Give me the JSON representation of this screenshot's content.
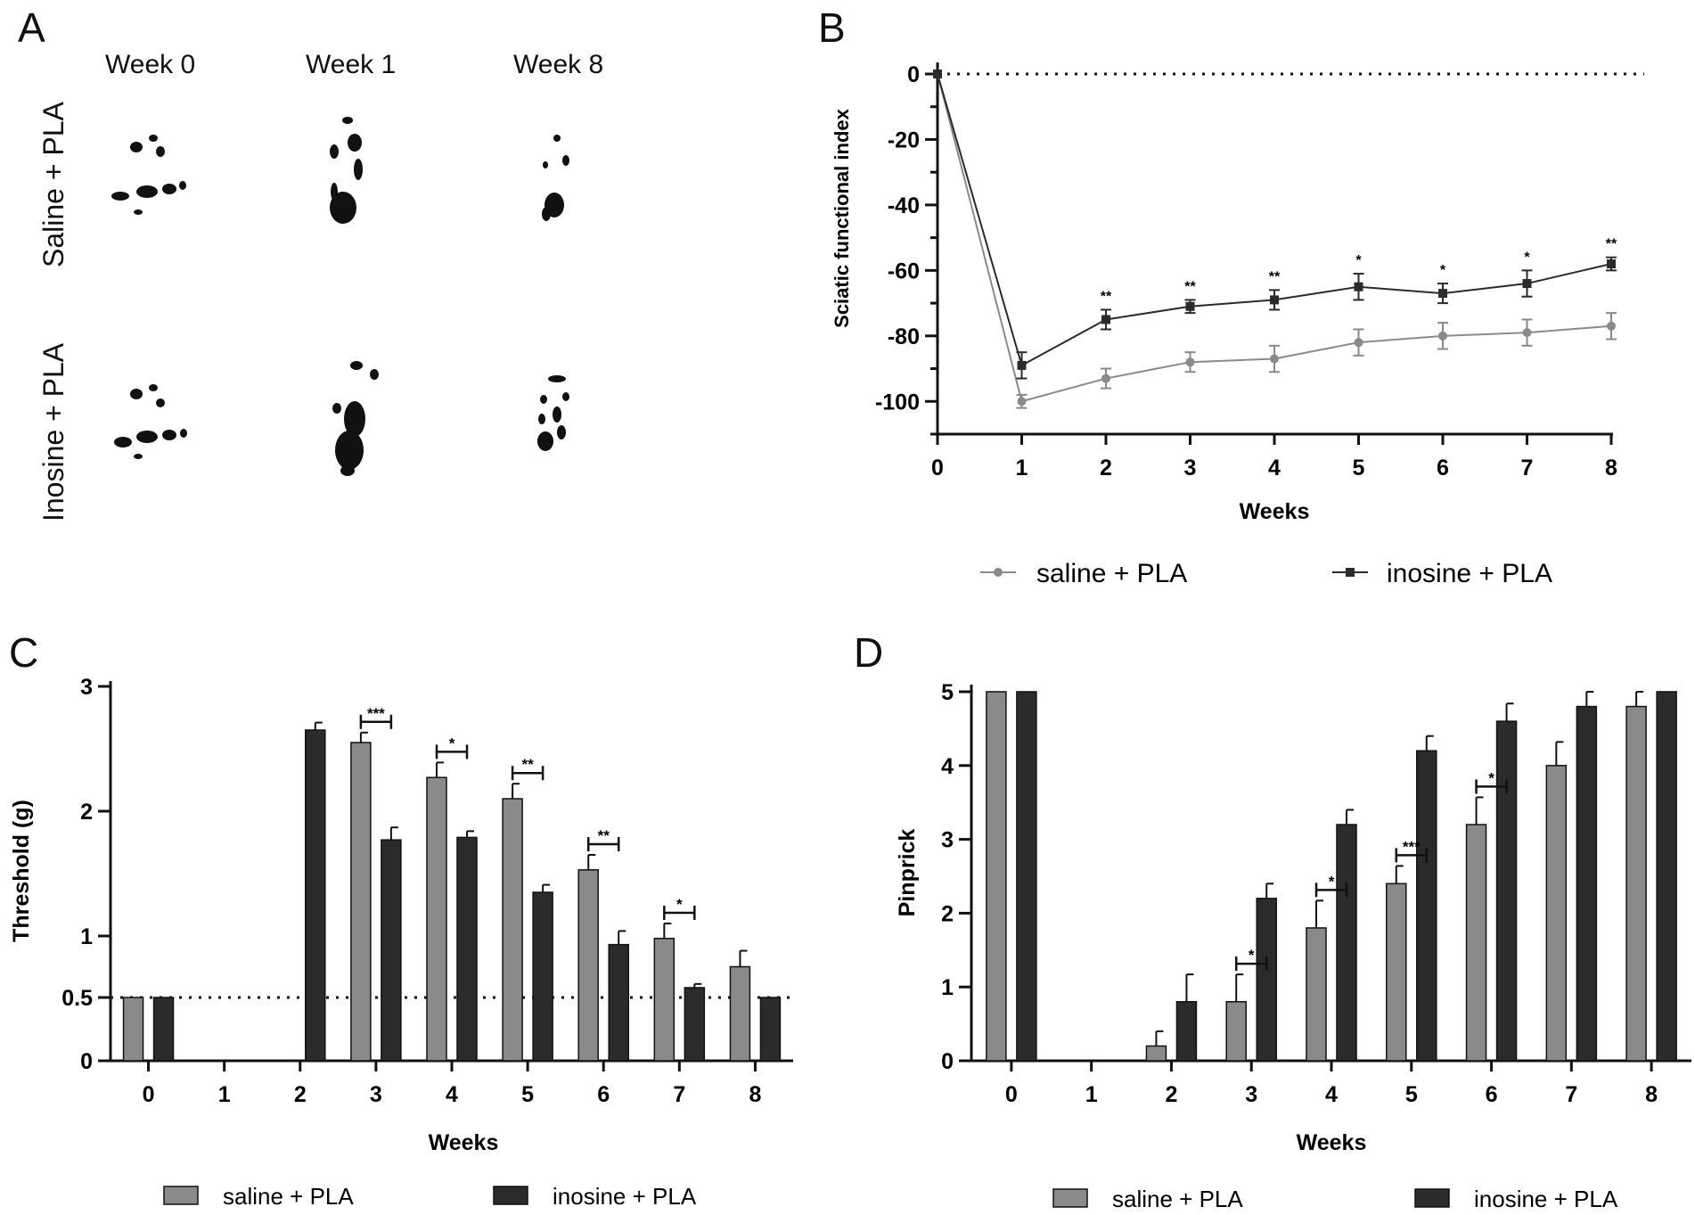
{
  "panels": {
    "a": "A",
    "b": "B",
    "c": "C",
    "d": "D"
  },
  "panel_a": {
    "columns": [
      "Week 0",
      "Week 1",
      "Week 8"
    ],
    "rows": [
      "Saline + PLA",
      "Inosine + PLA"
    ]
  },
  "colors": {
    "saline": "#8a8a8a",
    "inosine": "#2b2b2b",
    "axis": "#111111"
  },
  "chart_data": [
    {
      "id": "B",
      "type": "line",
      "xlabel": "Weeks",
      "ylabel": "Sciatic functional index",
      "x": [
        0,
        1,
        2,
        3,
        4,
        5,
        6,
        7,
        8
      ],
      "xlim": [
        0,
        8
      ],
      "ylim": [
        -110,
        0
      ],
      "yticks": [
        0,
        -20,
        -40,
        -60,
        -80,
        -100
      ],
      "reference_line": 0,
      "series": [
        {
          "name": "saline + PLA",
          "values": [
            0,
            -100,
            -93,
            -88,
            -87,
            -82,
            -80,
            -79,
            -77
          ],
          "errors": [
            0,
            2,
            3,
            3,
            4,
            4,
            4,
            4,
            4
          ]
        },
        {
          "name": "inosine + PLA",
          "values": [
            0,
            -89,
            -75,
            -71,
            -69,
            -65,
            -67,
            -64,
            -58
          ],
          "errors": [
            0,
            4,
            3,
            2,
            3,
            4,
            3,
            4,
            2
          ]
        }
      ],
      "significance": [
        "",
        "",
        "**",
        "**",
        "**",
        "*",
        "*",
        "*",
        "**"
      ]
    },
    {
      "id": "C",
      "type": "bar",
      "xlabel": "Weeks",
      "ylabel": "Threshold (g)",
      "categories": [
        "0",
        "1",
        "2",
        "3",
        "4",
        "5",
        "6",
        "7",
        "8"
      ],
      "ylim": [
        0,
        3
      ],
      "yticks": [
        "0",
        "0.5",
        "1",
        "2",
        "3"
      ],
      "reference_line": 0.5,
      "series": [
        {
          "name": "saline + PLA",
          "values": [
            0.5,
            0,
            0,
            2.55,
            2.27,
            2.1,
            1.53,
            0.98,
            0.75
          ],
          "errors": [
            0,
            0,
            0,
            0.08,
            0.12,
            0.12,
            0.12,
            0.12,
            0.13
          ]
        },
        {
          "name": "inosine + PLA",
          "values": [
            0.5,
            0,
            2.65,
            1.77,
            1.79,
            1.35,
            0.93,
            0.58,
            0.5
          ],
          "errors": [
            0,
            0,
            0.06,
            0.1,
            0.05,
            0.06,
            0.11,
            0.03,
            0
          ]
        }
      ],
      "significance": [
        {
          "category": "3",
          "label": "***"
        },
        {
          "category": "4",
          "label": "*"
        },
        {
          "category": "5",
          "label": "**"
        },
        {
          "category": "6",
          "label": "**"
        },
        {
          "category": "7",
          "label": "*"
        }
      ]
    },
    {
      "id": "D",
      "type": "bar",
      "xlabel": "Weeks",
      "ylabel": "Pinprick",
      "categories": [
        "0",
        "1",
        "2",
        "3",
        "4",
        "5",
        "6",
        "7",
        "8"
      ],
      "ylim": [
        0,
        5
      ],
      "yticks": [
        "0",
        "1",
        "2",
        "3",
        "4",
        "5"
      ],
      "series": [
        {
          "name": "saline + PLA",
          "values": [
            5,
            0,
            0.2,
            0.8,
            1.8,
            2.4,
            3.2,
            4.0,
            4.8
          ],
          "errors": [
            0,
            0,
            0.2,
            0.37,
            0.37,
            0.24,
            0.37,
            0.32,
            0.2
          ]
        },
        {
          "name": "inosine + PLA",
          "values": [
            5,
            0,
            0.8,
            2.2,
            3.2,
            4.2,
            4.6,
            4.8,
            5
          ],
          "errors": [
            0,
            0,
            0.37,
            0.2,
            0.2,
            0.2,
            0.24,
            0.2,
            0
          ]
        }
      ],
      "significance": [
        {
          "category": "3",
          "label": "*"
        },
        {
          "category": "4",
          "label": "*"
        },
        {
          "category": "5",
          "label": "***"
        },
        {
          "category": "6",
          "label": "*"
        }
      ]
    }
  ]
}
